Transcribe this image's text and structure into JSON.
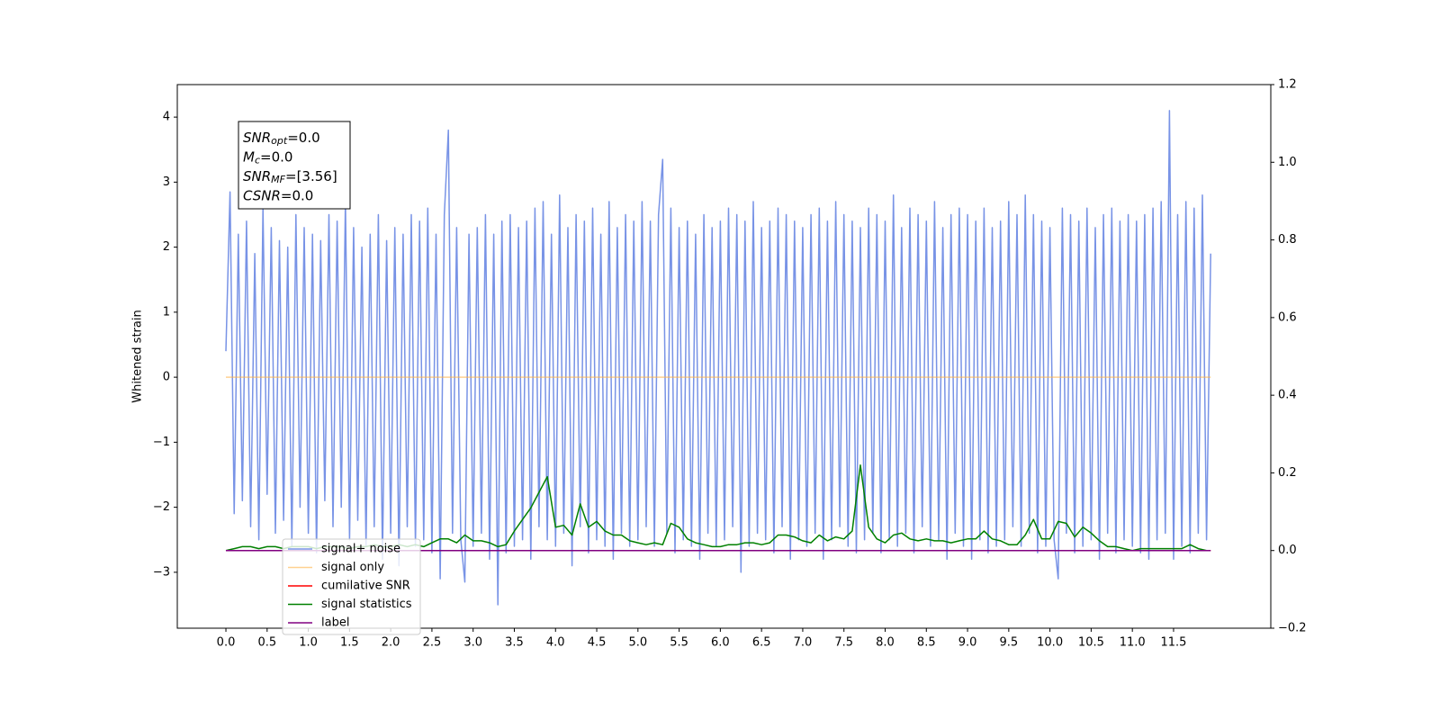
{
  "chart_data": {
    "type": "line",
    "ylabel": "Whitened strain",
    "xlim": [
      -0.59,
      12.68
    ],
    "ylim": [
      -3.86,
      4.5
    ],
    "y2lim": [
      -0.2,
      1.2
    ],
    "xticks": [
      {
        "value": 0,
        "label": "0.0"
      },
      {
        "value": 0.5,
        "label": "0.5"
      },
      {
        "value": 1,
        "label": "1.0"
      },
      {
        "value": 1.5,
        "label": "1.5"
      },
      {
        "value": 2,
        "label": "2.0"
      },
      {
        "value": 2.5,
        "label": "2.5"
      },
      {
        "value": 3,
        "label": "3.0"
      },
      {
        "value": 3.5,
        "label": "3.5"
      },
      {
        "value": 4,
        "label": "4.0"
      },
      {
        "value": 4.5,
        "label": "4.5"
      },
      {
        "value": 5,
        "label": "5.0"
      },
      {
        "value": 5.5,
        "label": "5.5"
      },
      {
        "value": 6,
        "label": "6.0"
      },
      {
        "value": 6.5,
        "label": "6.5"
      },
      {
        "value": 7,
        "label": "7.0"
      },
      {
        "value": 7.5,
        "label": "7.5"
      },
      {
        "value": 8,
        "label": "8.0"
      },
      {
        "value": 8.5,
        "label": "8.5"
      },
      {
        "value": 9,
        "label": "9.0"
      },
      {
        "value": 9.5,
        "label": "9.5"
      },
      {
        "value": 10,
        "label": "10.0"
      },
      {
        "value": 10.5,
        "label": "10.5"
      },
      {
        "value": 11,
        "label": "11.0"
      },
      {
        "value": 11.5,
        "label": "11.5"
      }
    ],
    "yticks": [
      {
        "value": -3,
        "label": "−3"
      },
      {
        "value": -2,
        "label": "−2"
      },
      {
        "value": -1,
        "label": "−1"
      },
      0,
      1,
      2,
      3,
      4
    ],
    "y2ticks": [
      {
        "value": -0.2,
        "label": "−0.2"
      },
      {
        "value": 0,
        "label": "0.0"
      },
      0.2,
      0.4,
      0.6,
      0.8,
      {
        "value": 1,
        "label": "1.0"
      },
      1.2
    ],
    "annotation": [
      {
        "symbol": "SNR",
        "sub": "opt",
        "text": "=0.0"
      },
      {
        "symbol": "M",
        "sub": "c",
        "text": "=0.0"
      },
      {
        "symbol": "SNR",
        "sub": "MF",
        "text": "=[3.56]"
      },
      {
        "symbol": "CSNR",
        "text": "=0.0"
      }
    ],
    "x": [
      0,
      0.05,
      0.1,
      0.15,
      0.2,
      0.25,
      0.3,
      0.35,
      0.4,
      0.45,
      0.5,
      0.55,
      0.6,
      0.65,
      0.7,
      0.75,
      0.8,
      0.85,
      0.9,
      0.95,
      1,
      1.05,
      1.1,
      1.15,
      1.2,
      1.25,
      1.3,
      1.35,
      1.4,
      1.45,
      1.5,
      1.55,
      1.6,
      1.65,
      1.7,
      1.75,
      1.8,
      1.85,
      1.9,
      1.95,
      2,
      2.05,
      2.1,
      2.15,
      2.2,
      2.25,
      2.3,
      2.35,
      2.4,
      2.45,
      2.5,
      2.55,
      2.6,
      2.65,
      2.7,
      2.75,
      2.8,
      2.85,
      2.9,
      2.95,
      3,
      3.05,
      3.1,
      3.15,
      3.2,
      3.25,
      3.3,
      3.35,
      3.4,
      3.45,
      3.5,
      3.55,
      3.6,
      3.65,
      3.7,
      3.75,
      3.8,
      3.85,
      3.9,
      3.95,
      4,
      4.05,
      4.1,
      4.15,
      4.2,
      4.25,
      4.3,
      4.35,
      4.4,
      4.45,
      4.5,
      4.55,
      4.6,
      4.65,
      4.7,
      4.75,
      4.8,
      4.85,
      4.9,
      4.95,
      5,
      5.05,
      5.1,
      5.15,
      5.2,
      5.25,
      5.3,
      5.35,
      5.4,
      5.45,
      5.5,
      5.55,
      5.6,
      5.65,
      5.7,
      5.75,
      5.8,
      5.85,
      5.9,
      5.95,
      6,
      6.05,
      6.1,
      6.15,
      6.2,
      6.25,
      6.3,
      6.35,
      6.4,
      6.45,
      6.5,
      6.55,
      6.6,
      6.65,
      6.7,
      6.75,
      6.8,
      6.85,
      6.9,
      6.95,
      7,
      7.05,
      7.1,
      7.15,
      7.2,
      7.25,
      7.3,
      7.35,
      7.4,
      7.45,
      7.5,
      7.55,
      7.6,
      7.65,
      7.7,
      7.75,
      7.8,
      7.85,
      7.9,
      7.95,
      8,
      8.05,
      8.1,
      8.15,
      8.2,
      8.25,
      8.3,
      8.35,
      8.4,
      8.45,
      8.5,
      8.55,
      8.6,
      8.65,
      8.7,
      8.75,
      8.8,
      8.85,
      8.9,
      8.95,
      9,
      9.05,
      9.1,
      9.15,
      9.2,
      9.25,
      9.3,
      9.35,
      9.4,
      9.45,
      9.5,
      9.55,
      9.6,
      9.65,
      9.7,
      9.75,
      9.8,
      9.85,
      9.9,
      9.95,
      10,
      10.05,
      10.1,
      10.15,
      10.2,
      10.25,
      10.3,
      10.35,
      10.4,
      10.45,
      10.5,
      10.55,
      10.6,
      10.65,
      10.7,
      10.75,
      10.8,
      10.85,
      10.9,
      10.95,
      11,
      11.05,
      11.1,
      11.15,
      11.2,
      11.25,
      11.3,
      11.35,
      11.4,
      11.45,
      11.5,
      11.55,
      11.6,
      11.65,
      11.7,
      11.75,
      11.8,
      11.85,
      11.9,
      11.95
    ],
    "series": [
      {
        "name": "signal+ noise",
        "color": "#7893e6",
        "values": [
          0.4,
          2.85,
          -2.1,
          2.2,
          -1.9,
          2.4,
          -2.3,
          1.9,
          -2.5,
          2.6,
          -1.8,
          2.3,
          -2.4,
          2.1,
          -2.2,
          2.0,
          -2.6,
          2.5,
          -2.0,
          2.3,
          -2.4,
          2.2,
          -2.7,
          2.1,
          -1.9,
          2.5,
          -2.3,
          2.4,
          -2.0,
          2.7,
          -2.5,
          2.3,
          -2.2,
          2.0,
          -2.6,
          2.2,
          -2.3,
          2.5,
          -2.8,
          2.1,
          -2.4,
          2.3,
          -2.9,
          2.2,
          -2.3,
          2.5,
          -2.6,
          2.4,
          -2.5,
          2.6,
          -2.7,
          2.2,
          -3.1,
          2.5,
          3.8,
          -2.4,
          2.3,
          -2.5,
          -3.15,
          2.2,
          -2.6,
          2.3,
          -2.4,
          2.5,
          -2.8,
          2.2,
          -3.5,
          2.4,
          -2.7,
          2.5,
          -2.6,
          2.3,
          -2.5,
          2.4,
          -2.8,
          2.6,
          -2.3,
          2.7,
          -2.5,
          2.2,
          -2.6,
          2.8,
          -2.4,
          2.3,
          -2.9,
          2.5,
          -2.3,
          2.4,
          -2.7,
          2.6,
          -2.5,
          2.2,
          -2.6,
          2.7,
          -2.8,
          2.3,
          -2.4,
          2.5,
          -2.6,
          2.4,
          -2.5,
          2.7,
          -2.3,
          2.4,
          -2.6,
          2.5,
          3.35,
          -2.4,
          2.6,
          -2.7,
          2.3,
          -2.5,
          2.4,
          -2.6,
          2.2,
          -2.8,
          2.5,
          -2.4,
          2.3,
          -2.6,
          2.4,
          -2.5,
          2.6,
          -2.3,
          2.5,
          -3.0,
          2.4,
          -2.6,
          2.7,
          -2.4,
          2.3,
          -2.5,
          2.4,
          -2.7,
          2.6,
          -2.3,
          2.5,
          -2.8,
          2.4,
          -2.5,
          2.3,
          -2.6,
          2.5,
          -2.4,
          2.6,
          -2.8,
          2.4,
          -2.5,
          2.7,
          -2.3,
          2.5,
          -2.6,
          2.4,
          -2.7,
          2.3,
          -2.5,
          2.6,
          -2.4,
          2.5,
          -2.7,
          2.4,
          -2.5,
          2.8,
          -2.6,
          2.3,
          -2.4,
          2.6,
          -2.7,
          2.5,
          -2.3,
          2.4,
          -2.6,
          2.7,
          -2.5,
          2.3,
          -2.8,
          2.5,
          -2.4,
          2.6,
          -2.6,
          2.5,
          -2.8,
          2.4,
          -2.5,
          2.6,
          -2.7,
          2.3,
          -2.6,
          2.4,
          -2.5,
          2.7,
          -2.3,
          2.5,
          -2.6,
          2.8,
          -2.4,
          2.5,
          -2.7,
          2.4,
          -2.6,
          2.3,
          -2.5,
          -3.1,
          2.6,
          -2.4,
          2.5,
          -2.7,
          2.4,
          -2.6,
          2.6,
          -2.5,
          2.3,
          -2.8,
          2.5,
          -2.4,
          2.6,
          -2.7,
          2.4,
          -2.5,
          2.5,
          -2.6,
          2.4,
          -2.7,
          2.5,
          -2.8,
          2.6,
          -2.5,
          2.7,
          -2.4,
          4.1,
          -2.8,
          2.5,
          -2.6,
          2.7,
          -2.7,
          2.6,
          -2.4,
          2.8,
          -2.5,
          1.9
        ]
      },
      {
        "name": "signal only",
        "color": "#ffb347",
        "x": [
          0,
          11.95
        ],
        "values": [
          0,
          0
        ]
      },
      {
        "name": "cumilative SNR",
        "color": "#ff0000",
        "axis": "y2",
        "x": [
          0,
          11.95
        ],
        "values": [
          0,
          0
        ]
      },
      {
        "name": "signal statistics",
        "color": "#008000",
        "axis": "y2",
        "x": [
          0,
          0.1,
          0.2,
          0.3,
          0.4,
          0.5,
          0.6,
          0.7,
          0.8,
          0.9,
          1,
          1.1,
          1.2,
          1.3,
          1.4,
          1.5,
          1.6,
          1.7,
          1.8,
          1.9,
          2,
          2.1,
          2.2,
          2.3,
          2.4,
          2.5,
          2.6,
          2.7,
          2.8,
          2.9,
          3,
          3.1,
          3.2,
          3.3,
          3.4,
          3.5,
          3.6,
          3.7,
          3.8,
          3.9,
          4,
          4.1,
          4.2,
          4.3,
          4.4,
          4.5,
          4.6,
          4.7,
          4.8,
          4.9,
          5,
          5.1,
          5.2,
          5.3,
          5.4,
          5.5,
          5.6,
          5.7,
          5.8,
          5.9,
          6,
          6.1,
          6.2,
          6.3,
          6.4,
          6.5,
          6.6,
          6.7,
          6.8,
          6.9,
          7,
          7.1,
          7.2,
          7.3,
          7.4,
          7.5,
          7.6,
          7.7,
          7.8,
          7.9,
          8,
          8.1,
          8.2,
          8.3,
          8.4,
          8.5,
          8.6,
          8.7,
          8.8,
          8.9,
          9,
          9.1,
          9.2,
          9.3,
          9.4,
          9.5,
          9.6,
          9.7,
          9.8,
          9.9,
          10,
          10.1,
          10.2,
          10.3,
          10.4,
          10.5,
          10.6,
          10.7,
          10.8,
          10.9,
          11,
          11.1,
          11.2,
          11.3,
          11.4,
          11.5,
          11.6,
          11.7,
          11.8,
          11.9
        ],
        "values": [
          0,
          0.005,
          0.01,
          0.01,
          0.005,
          0.01,
          0.01,
          0.005,
          0.01,
          0.01,
          0.01,
          0.005,
          0.01,
          0.01,
          0.01,
          0.005,
          0.01,
          0.01,
          0.015,
          0.01,
          0.01,
          0.015,
          0.01,
          0.015,
          0.01,
          0.02,
          0.03,
          0.03,
          0.02,
          0.04,
          0.025,
          0.025,
          0.02,
          0.01,
          0.015,
          0.05,
          0.08,
          0.11,
          0.15,
          0.19,
          0.06,
          0.065,
          0.04,
          0.12,
          0.06,
          0.075,
          0.05,
          0.04,
          0.04,
          0.025,
          0.02,
          0.015,
          0.02,
          0.015,
          0.07,
          0.06,
          0.03,
          0.02,
          0.015,
          0.01,
          0.01,
          0.015,
          0.015,
          0.02,
          0.02,
          0.015,
          0.02,
          0.04,
          0.04,
          0.035,
          0.025,
          0.02,
          0.04,
          0.025,
          0.035,
          0.03,
          0.05,
          0.22,
          0.06,
          0.03,
          0.02,
          0.04,
          0.045,
          0.03,
          0.025,
          0.03,
          0.025,
          0.025,
          0.02,
          0.025,
          0.03,
          0.03,
          0.05,
          0.03,
          0.025,
          0.015,
          0.015,
          0.04,
          0.08,
          0.03,
          0.03,
          0.075,
          0.07,
          0.035,
          0.06,
          0.045,
          0.025,
          0.01,
          0.01,
          0.005,
          0,
          0.005,
          0.005,
          0.005,
          0.005,
          0.005,
          0.005,
          0.015,
          0.005,
          0
        ]
      },
      {
        "name": "label",
        "color": "#800080",
        "axis": "y2",
        "x": [
          0,
          11.95
        ],
        "values": [
          0,
          0
        ]
      }
    ]
  }
}
